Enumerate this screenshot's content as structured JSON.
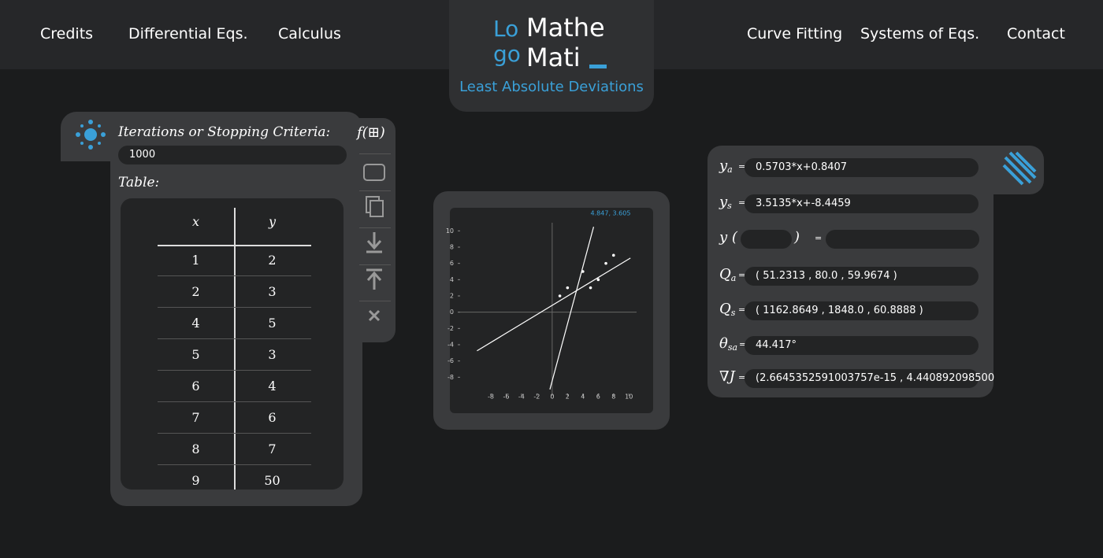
{
  "nav": {
    "left": [
      "Credits",
      "Differential Eqs.",
      "Calculus"
    ],
    "right": [
      "Curve Fitting",
      "Systems of Eqs.",
      "Contact"
    ]
  },
  "logo": {
    "lo": "Lo",
    "go": "go",
    "line1": "Mathe",
    "line2": "Mati"
  },
  "subtitle": "Least Absolute Deviations",
  "input_panel": {
    "iterations_label": "Iterations or Stopping Criteria:",
    "iterations": "1000",
    "table_label": "Table:",
    "table": {
      "header": [
        "x",
        "y"
      ],
      "rows": [
        [
          1,
          2
        ],
        [
          2,
          3
        ],
        [
          4,
          5
        ],
        [
          5,
          3
        ],
        [
          6,
          4
        ],
        [
          7,
          6
        ],
        [
          8,
          7
        ],
        [
          9,
          50
        ]
      ]
    }
  },
  "toolbar": {
    "function_button": "f(⊞)"
  },
  "chart_data": {
    "type": "scatter",
    "hover_label": "4.847, 3.605",
    "xlim": [
      -12,
      11
    ],
    "ylim": [
      -10,
      11
    ],
    "xticks": [
      -8,
      -6,
      -4,
      -2,
      0,
      2,
      4,
      6,
      8,
      10
    ],
    "yticks": [
      -8,
      -6,
      -4,
      -2,
      0,
      2,
      4,
      6,
      8,
      10
    ],
    "points": {
      "color": "#ffffff",
      "x": [
        1,
        2,
        4,
        5,
        6,
        7,
        8
      ],
      "values": [
        2,
        3,
        5,
        3,
        4,
        6,
        7
      ]
    },
    "series": [
      {
        "color": "#ffffff",
        "x": [
          -9.8,
          10.2
        ],
        "values": [
          -4.75,
          6.66
        ]
      },
      {
        "color": "#ffffff",
        "x": [
          -0.3,
          5.4
        ],
        "values": [
          -9.5,
          10.5
        ]
      }
    ]
  },
  "results": [
    {
      "symbol": "y",
      "sub": "a",
      "eq": "=",
      "value": "0.5703*x+0.8407"
    },
    {
      "symbol": "y",
      "sub": "s",
      "eq": "=",
      "value": "3.5135*x+-8.4459"
    },
    {
      "symbol": "y (",
      "close": ")",
      "eq": "="
    },
    {
      "symbol": "Q",
      "sub": "a",
      "eq": "=",
      "value": "( 51.2313 , 80.0 , 59.9674 )"
    },
    {
      "symbol": "Q",
      "sub": "s",
      "eq": "=",
      "value": "( 1162.8649 , 1848.0 , 60.8888 )"
    },
    {
      "symbol": "θ",
      "sub": "sa",
      "eq": "=",
      "value": "44.417°"
    },
    {
      "symbol": "∇J",
      "eq": "=",
      "value": "(2.6645352591003757e-15 , 4.440892098500"
    }
  ]
}
